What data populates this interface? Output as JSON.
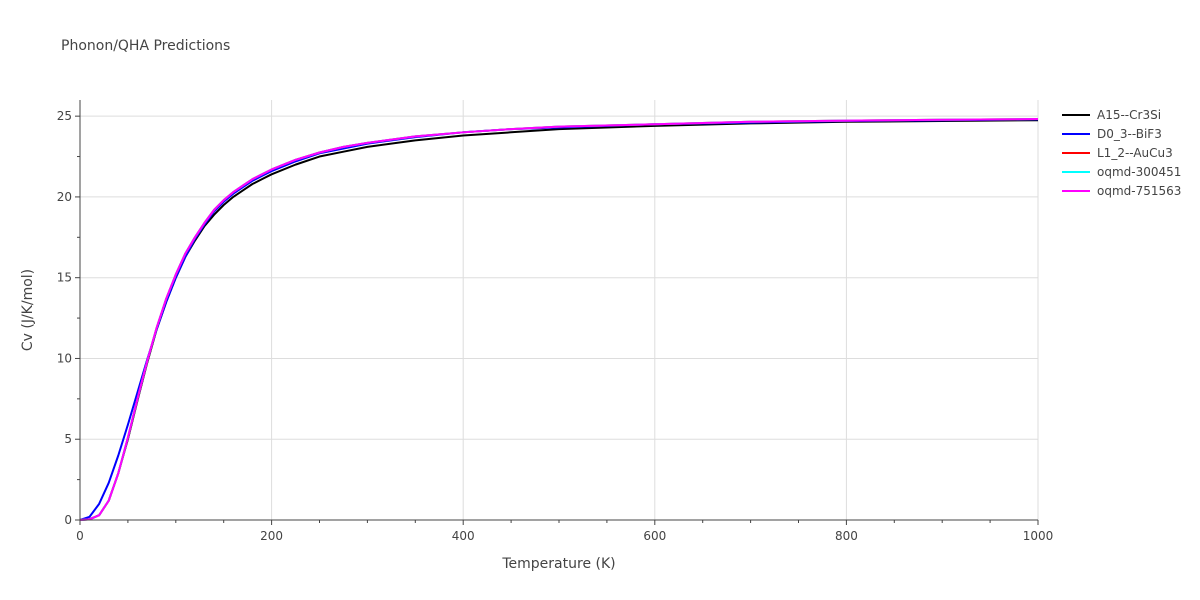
{
  "chart_data": {
    "type": "line",
    "title": "Phonon/QHA Predictions",
    "xlabel": "Temperature (K)",
    "ylabel": "Cv (J/K/mol)",
    "xlim": [
      0,
      1000
    ],
    "ylim": [
      0,
      26
    ],
    "xticks": [
      0,
      200,
      400,
      600,
      800,
      1000
    ],
    "yticks": [
      0,
      5,
      10,
      15,
      20,
      25
    ],
    "grid": true,
    "legend_position": "right",
    "series": [
      {
        "name": "A15--Cr3Si",
        "color": "#000000",
        "x": [
          0,
          10,
          20,
          30,
          40,
          50,
          60,
          70,
          80,
          90,
          100,
          110,
          120,
          130,
          140,
          150,
          160,
          170,
          180,
          190,
          200,
          225,
          250,
          275,
          300,
          350,
          400,
          450,
          500,
          600,
          700,
          800,
          900,
          1000
        ],
        "y": [
          0,
          0.05,
          0.3,
          1.2,
          2.9,
          5.0,
          7.4,
          9.7,
          11.8,
          13.5,
          15.0,
          16.3,
          17.3,
          18.2,
          18.9,
          19.5,
          20.0,
          20.4,
          20.8,
          21.1,
          21.4,
          22.0,
          22.5,
          22.8,
          23.1,
          23.5,
          23.8,
          24.0,
          24.2,
          24.4,
          24.55,
          24.65,
          24.7,
          24.75
        ]
      },
      {
        "name": "D0_3--BiF3",
        "color": "#0000ff",
        "x": [
          0,
          10,
          20,
          30,
          40,
          50,
          60,
          70,
          80,
          90,
          100,
          110,
          120,
          130,
          140,
          150,
          160,
          170,
          180,
          190,
          200,
          225,
          250,
          275,
          300,
          350,
          400,
          450,
          500,
          600,
          700,
          800,
          900,
          1000
        ],
        "y": [
          0,
          0.2,
          1.0,
          2.3,
          4.0,
          5.9,
          7.9,
          9.9,
          11.8,
          13.5,
          15.0,
          16.3,
          17.4,
          18.3,
          19.1,
          19.7,
          20.2,
          20.6,
          21.0,
          21.3,
          21.6,
          22.2,
          22.7,
          23.0,
          23.3,
          23.7,
          24.0,
          24.2,
          24.3,
          24.5,
          24.6,
          24.7,
          24.75,
          24.8
        ]
      },
      {
        "name": "L1_2--AuCu3",
        "color": "#ff0000",
        "x": [
          0,
          10,
          20,
          30,
          40,
          50,
          60,
          70,
          80,
          90,
          100,
          110,
          120,
          130,
          140,
          150,
          160,
          170,
          180,
          190,
          200,
          225,
          250,
          275,
          300,
          350,
          400,
          450,
          500,
          600,
          700,
          800,
          900,
          1000
        ],
        "y": [
          0,
          0.04,
          0.3,
          1.2,
          2.9,
          5.1,
          7.5,
          9.8,
          11.9,
          13.7,
          15.2,
          16.5,
          17.5,
          18.4,
          19.2,
          19.8,
          20.3,
          20.7,
          21.1,
          21.4,
          21.7,
          22.3,
          22.75,
          23.1,
          23.35,
          23.75,
          24.0,
          24.2,
          24.35,
          24.5,
          24.65,
          24.72,
          24.78,
          24.82
        ]
      },
      {
        "name": "oqmd-300451",
        "color": "#00ffff",
        "x": [
          0,
          10,
          20,
          30,
          40,
          50,
          60,
          70,
          80,
          90,
          100,
          110,
          120,
          130,
          140,
          150,
          160,
          170,
          180,
          190,
          200,
          225,
          250,
          275,
          300,
          350,
          400,
          450,
          500,
          600,
          700,
          800,
          900,
          1000
        ],
        "y": [
          0,
          0.04,
          0.3,
          1.2,
          2.9,
          5.1,
          7.5,
          9.8,
          11.9,
          13.7,
          15.2,
          16.5,
          17.5,
          18.4,
          19.2,
          19.8,
          20.3,
          20.7,
          21.1,
          21.4,
          21.7,
          22.3,
          22.75,
          23.1,
          23.35,
          23.75,
          24.0,
          24.2,
          24.35,
          24.5,
          24.65,
          24.72,
          24.78,
          24.82
        ]
      },
      {
        "name": "oqmd-751563",
        "color": "#ff00ff",
        "x": [
          0,
          10,
          20,
          30,
          40,
          50,
          60,
          70,
          80,
          90,
          100,
          110,
          120,
          130,
          140,
          150,
          160,
          170,
          180,
          190,
          200,
          225,
          250,
          275,
          300,
          350,
          400,
          450,
          500,
          600,
          700,
          800,
          900,
          1000
        ],
        "y": [
          0,
          0.04,
          0.3,
          1.2,
          2.9,
          5.1,
          7.5,
          9.8,
          11.9,
          13.7,
          15.2,
          16.5,
          17.5,
          18.4,
          19.2,
          19.8,
          20.3,
          20.7,
          21.1,
          21.4,
          21.7,
          22.3,
          22.75,
          23.1,
          23.35,
          23.75,
          24.0,
          24.2,
          24.35,
          24.5,
          24.65,
          24.72,
          24.78,
          24.82
        ]
      }
    ]
  }
}
